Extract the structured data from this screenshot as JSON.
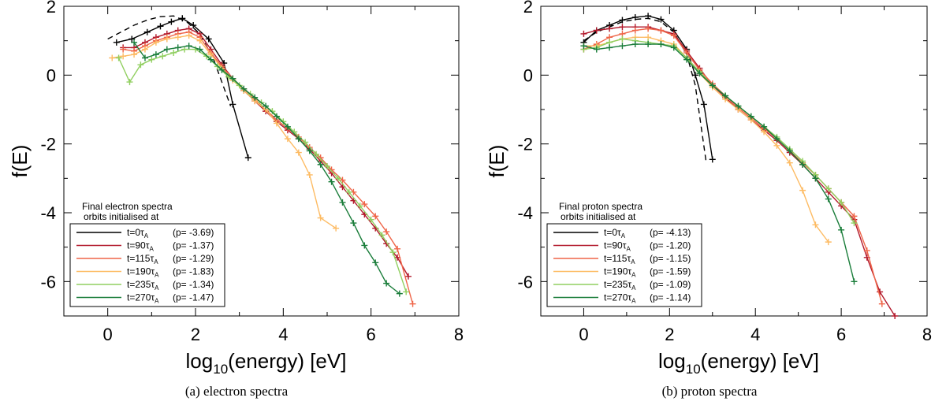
{
  "chart_data": [
    {
      "type": "line",
      "caption": "(a) electron spectra",
      "xlabel_base": "log",
      "xlabel_sub": "10",
      "xlabel_rest": "(energy) [eV]",
      "ylabel": "f(E)",
      "xlim": [
        -1,
        8
      ],
      "ylim": [
        -7,
        2
      ],
      "xticks": [
        "0",
        "2",
        "4",
        "6",
        "8"
      ],
      "yticks": [
        "-6",
        "-4",
        "-2",
        "0",
        "2"
      ],
      "legend_title": [
        "Final electron spectra",
        "orbits initialised at"
      ],
      "series": [
        {
          "name": "t=0",
          "tau_text": "A",
          "p_text": "(p= -3.69)",
          "color": "#000000",
          "x": [
            0.2,
            0.55,
            0.9,
            1.2,
            1.45,
            1.7,
            1.95,
            2.3,
            2.65,
            2.85,
            3.2
          ],
          "y": [
            0.95,
            1.05,
            1.25,
            1.42,
            1.55,
            1.65,
            1.45,
            1.05,
            0.35,
            -0.85,
            -2.4
          ]
        },
        {
          "name": "t=90",
          "tau_text": "A",
          "p_text": "(p= -1.37)",
          "color": "#b2182b",
          "x": [
            0.35,
            0.6,
            0.85,
            1.1,
            1.35,
            1.6,
            1.85,
            2.1,
            2.35,
            2.6,
            2.85,
            3.1,
            3.35,
            3.6,
            3.85,
            4.1,
            4.35,
            4.6,
            4.85,
            5.1,
            5.35,
            5.6,
            5.85,
            6.1,
            6.35,
            6.6,
            6.85
          ],
          "y": [
            0.8,
            0.8,
            0.95,
            1.1,
            1.2,
            1.3,
            1.35,
            1.2,
            0.75,
            0.3,
            -0.1,
            -0.45,
            -0.75,
            -1.05,
            -1.35,
            -1.6,
            -1.85,
            -2.15,
            -2.5,
            -2.85,
            -3.25,
            -3.65,
            -4.05,
            -4.45,
            -4.9,
            -5.3,
            -5.85
          ]
        },
        {
          "name": "t=115",
          "tau_text": "A",
          "p_text": "(p= -1.29)",
          "color": "#ef6548",
          "x": [
            0.35,
            0.6,
            0.85,
            1.1,
            1.35,
            1.6,
            1.85,
            2.1,
            2.35,
            2.6,
            2.85,
            3.1,
            3.35,
            3.6,
            3.85,
            4.1,
            4.35,
            4.6,
            4.85,
            5.1,
            5.35,
            5.6,
            5.85,
            6.1,
            6.35,
            6.6,
            6.95
          ],
          "y": [
            0.75,
            0.7,
            0.85,
            1.0,
            1.1,
            1.2,
            1.25,
            1.1,
            0.65,
            0.25,
            -0.1,
            -0.4,
            -0.7,
            -1.0,
            -1.3,
            -1.55,
            -1.8,
            -2.1,
            -2.4,
            -2.75,
            -3.05,
            -3.4,
            -3.75,
            -4.1,
            -4.55,
            -5.05,
            -6.65
          ]
        },
        {
          "name": "t=190",
          "tau_text": "A",
          "p_text": "(p= -1.83)",
          "color": "#fdbb63",
          "x": [
            0.1,
            0.35,
            0.6,
            0.85,
            1.1,
            1.35,
            1.6,
            1.85,
            2.1,
            2.35,
            2.6,
            2.85,
            3.1,
            3.35,
            3.6,
            3.85,
            4.1,
            4.35,
            4.6,
            4.85,
            5.2
          ],
          "y": [
            0.5,
            0.55,
            0.6,
            0.75,
            0.95,
            1.05,
            1.1,
            1.15,
            1.0,
            0.6,
            0.2,
            -0.15,
            -0.45,
            -0.75,
            -1.0,
            -1.4,
            -1.85,
            -2.25,
            -2.9,
            -4.15,
            -4.45
          ]
        },
        {
          "name": "t=235",
          "tau_text": "A",
          "p_text": "(p= -1.34)",
          "color": "#91cf60",
          "x": [
            0.25,
            0.5,
            0.75,
            1.0,
            1.25,
            1.5,
            1.75,
            2.0,
            2.25,
            2.5,
            2.75,
            3.0,
            3.25,
            3.5,
            3.75,
            4.0,
            4.25,
            4.5,
            4.75,
            5.0,
            5.25,
            5.5,
            5.75,
            6.0,
            6.25,
            6.5,
            6.8
          ],
          "y": [
            0.5,
            -0.2,
            0.3,
            0.45,
            0.55,
            0.65,
            0.75,
            0.75,
            0.55,
            0.25,
            -0.05,
            -0.3,
            -0.55,
            -0.8,
            -1.05,
            -1.35,
            -1.65,
            -1.95,
            -2.3,
            -2.65,
            -3.0,
            -3.4,
            -3.8,
            -4.2,
            -4.65,
            -5.15,
            -6.3
          ]
        },
        {
          "name": "t=270",
          "tau_text": "A",
          "p_text": "(p= -1.47)",
          "color": "#1a7d3a",
          "x": [
            0.6,
            0.85,
            1.1,
            1.35,
            1.6,
            1.85,
            2.1,
            2.35,
            2.6,
            2.85,
            3.1,
            3.35,
            3.6,
            3.85,
            4.1,
            4.35,
            4.6,
            4.85,
            5.1,
            5.35,
            5.6,
            5.85,
            6.1,
            6.35,
            6.65
          ],
          "y": [
            0.95,
            0.5,
            0.6,
            0.75,
            0.8,
            0.85,
            0.75,
            0.45,
            0.15,
            -0.1,
            -0.4,
            -0.65,
            -0.9,
            -1.2,
            -1.5,
            -1.85,
            -2.2,
            -2.6,
            -3.1,
            -3.7,
            -4.3,
            -4.95,
            -5.45,
            -6.05,
            -6.35
          ]
        }
      ],
      "initial_dashed": {
        "x": [
          0.0,
          0.3,
          0.6,
          0.9,
          1.2,
          1.5,
          1.8,
          2.1,
          2.4,
          2.6,
          2.8
        ],
        "y": [
          1.05,
          1.25,
          1.45,
          1.6,
          1.7,
          1.72,
          1.55,
          1.2,
          0.5,
          -0.2,
          -0.9
        ]
      }
    },
    {
      "type": "line",
      "caption": "(b) proton spectra",
      "xlabel_base": "log",
      "xlabel_sub": "10",
      "xlabel_rest": "(energy) [eV]",
      "ylabel": "f(E)",
      "xlim": [
        -1,
        8
      ],
      "ylim": [
        -7,
        2
      ],
      "xticks": [
        "0",
        "2",
        "4",
        "6",
        "8"
      ],
      "yticks": [
        "-6",
        "-4",
        "-2",
        "0",
        "2"
      ],
      "legend_title": [
        "Final proton spectra",
        "orbits initialised at"
      ],
      "series": [
        {
          "name": "t=0",
          "tau_text": "A",
          "p_text": "(p= -4.13)",
          "color": "#000000",
          "x": [
            0.0,
            0.3,
            0.6,
            0.9,
            1.2,
            1.5,
            1.8,
            2.1,
            2.4,
            2.6,
            2.8,
            3.0
          ],
          "y": [
            0.95,
            1.3,
            1.45,
            1.6,
            1.68,
            1.72,
            1.62,
            1.3,
            0.75,
            0.0,
            -0.85,
            -2.45
          ]
        },
        {
          "name": "t=90",
          "tau_text": "A",
          "p_text": "(p= -1.20)",
          "color": "#b2182b",
          "x": [
            0.0,
            0.3,
            0.6,
            0.9,
            1.2,
            1.5,
            1.8,
            2.1,
            2.4,
            2.7,
            3.0,
            3.3,
            3.6,
            3.9,
            4.2,
            4.5,
            4.8,
            5.1,
            5.4,
            5.7,
            6.0,
            6.3,
            6.6,
            6.9,
            7.25
          ],
          "y": [
            1.2,
            1.3,
            1.35,
            1.4,
            1.4,
            1.4,
            1.3,
            1.2,
            0.7,
            0.2,
            -0.3,
            -0.65,
            -1.0,
            -1.3,
            -1.6,
            -1.9,
            -2.25,
            -2.6,
            -3.0,
            -3.4,
            -3.8,
            -4.2,
            -5.3,
            -6.3,
            -7.0
          ]
        },
        {
          "name": "t=115",
          "tau_text": "A",
          "p_text": "(p= -1.15)",
          "color": "#ef6548",
          "x": [
            0.0,
            0.3,
            0.6,
            0.9,
            1.2,
            1.5,
            1.8,
            2.1,
            2.4,
            2.7,
            3.0,
            3.3,
            3.6,
            3.9,
            4.2,
            4.5,
            4.8,
            5.1,
            5.4,
            5.7,
            6.0,
            6.3,
            6.6,
            6.95
          ],
          "y": [
            0.75,
            0.9,
            1.1,
            1.2,
            1.3,
            1.35,
            1.3,
            1.15,
            0.65,
            0.15,
            -0.25,
            -0.6,
            -0.95,
            -1.25,
            -1.55,
            -1.85,
            -2.2,
            -2.55,
            -2.9,
            -3.3,
            -3.7,
            -4.1,
            -5.1,
            -6.65
          ]
        },
        {
          "name": "t=190",
          "tau_text": "A",
          "p_text": "(p= -1.59)",
          "color": "#fdbb63",
          "x": [
            0.0,
            0.3,
            0.6,
            0.9,
            1.2,
            1.5,
            1.8,
            2.1,
            2.4,
            2.7,
            3.0,
            3.3,
            3.6,
            3.9,
            4.2,
            4.5,
            4.8,
            5.1,
            5.4,
            5.7
          ],
          "y": [
            0.85,
            0.85,
            0.95,
            1.05,
            1.1,
            1.1,
            1.0,
            0.9,
            0.5,
            0.05,
            -0.35,
            -0.7,
            -1.0,
            -1.3,
            -1.65,
            -2.05,
            -2.55,
            -3.35,
            -4.35,
            -4.85
          ]
        },
        {
          "name": "t=235",
          "tau_text": "A",
          "p_text": "(p= -1.09)",
          "color": "#91cf60",
          "x": [
            0.0,
            0.3,
            0.6,
            0.9,
            1.2,
            1.5,
            1.8,
            2.1,
            2.4,
            2.7,
            3.0,
            3.3,
            3.6,
            3.9,
            4.2,
            4.5,
            4.8,
            5.1,
            5.4,
            5.7,
            6.0,
            6.3
          ],
          "y": [
            0.75,
            0.8,
            0.95,
            1.05,
            1.0,
            0.95,
            0.9,
            0.85,
            0.5,
            0.1,
            -0.3,
            -0.6,
            -0.9,
            -1.2,
            -1.5,
            -1.8,
            -2.15,
            -2.5,
            -2.9,
            -3.3,
            -3.7,
            -4.3
          ]
        },
        {
          "name": "t=270",
          "tau_text": "A",
          "p_text": "(p= -1.14)",
          "color": "#1a7d3a",
          "x": [
            0.0,
            0.3,
            0.6,
            0.9,
            1.2,
            1.5,
            1.8,
            2.1,
            2.4,
            2.7,
            3.0,
            3.3,
            3.6,
            3.9,
            4.2,
            4.5,
            4.8,
            5.1,
            5.4,
            5.7,
            6.0,
            6.3
          ],
          "y": [
            0.85,
            0.75,
            0.8,
            0.85,
            0.9,
            0.9,
            0.9,
            0.8,
            0.45,
            0.05,
            -0.3,
            -0.6,
            -0.9,
            -1.2,
            -1.5,
            -1.85,
            -2.2,
            -2.6,
            -3.0,
            -3.6,
            -4.5,
            -6.0
          ]
        }
      ],
      "initial_dashed": {
        "x": [
          0.0,
          0.3,
          0.6,
          0.9,
          1.2,
          1.5,
          1.8,
          2.1,
          2.4,
          2.6,
          2.85
        ],
        "y": [
          1.0,
          1.25,
          1.4,
          1.55,
          1.62,
          1.65,
          1.55,
          1.25,
          0.6,
          -0.3,
          -2.5
        ]
      }
    }
  ]
}
